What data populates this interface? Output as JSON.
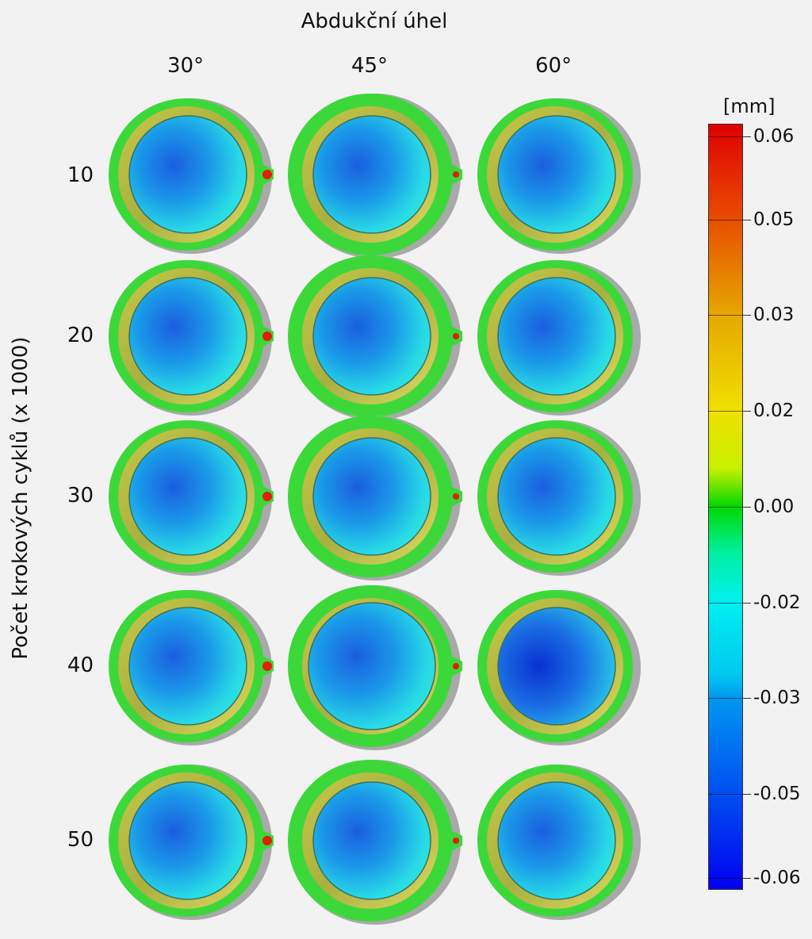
{
  "figure": {
    "top_title": "Abdukční úhel",
    "y_title": "Počet krokových cyklů (x 1000)",
    "columns": [
      "30°",
      "45°",
      "60°"
    ],
    "rows": [
      "10",
      "20",
      "30",
      "40",
      "50"
    ]
  },
  "colorbar": {
    "unit": "[mm]",
    "ticks": [
      "0.06",
      "0.05",
      "0.03",
      "0.02",
      "0.00",
      "-0.02",
      "-0.03",
      "-0.05",
      "-0.06"
    ],
    "colors": {
      "max": "#e00000",
      "zero": "#00d800",
      "min": "#0000f0"
    }
  },
  "scan_colors": {
    "shadow": "#a9a9a9",
    "rim_green": "#3cd83a",
    "groove_yellow": "#d8d04a",
    "cup_cyan": "#28d8e6",
    "cup_blue": "#1a5ee0",
    "hole_red": "#e02000"
  }
}
